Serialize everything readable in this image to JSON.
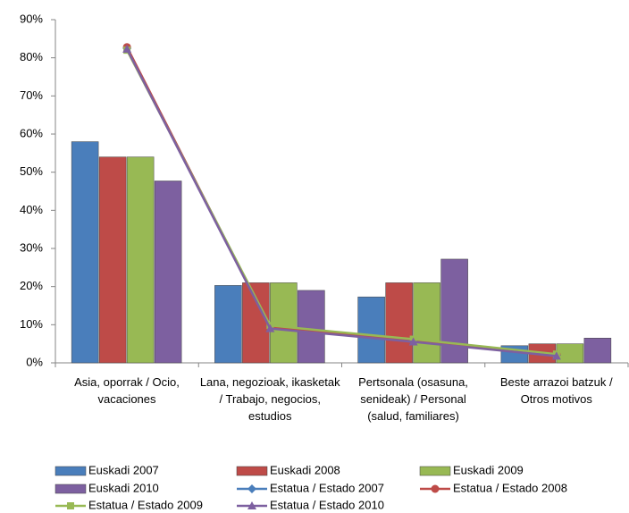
{
  "chart_data": {
    "type": "bar_line",
    "categories": [
      "Asia, oporrak / Ocio, vacaciones",
      "Lana, negozioak, ikasketak / Trabajo, negocios, estudios",
      "Pertsonala (osasuna, senideak) / Personal (salud, familiares)",
      "Beste arrazoi batzuk / Otros motivos"
    ],
    "series": [
      {
        "name": "Euskadi 2007",
        "type": "bar",
        "color": "#4a7ebb",
        "values": [
          58,
          20.3,
          17.3,
          4.5
        ]
      },
      {
        "name": "Euskadi 2008",
        "type": "bar",
        "color": "#be4b48",
        "values": [
          54,
          21,
          21,
          5
        ]
      },
      {
        "name": "Euskadi 2009",
        "type": "bar",
        "color": "#98b954",
        "values": [
          54,
          21,
          21,
          5
        ]
      },
      {
        "name": "Euskadi 2010",
        "type": "bar",
        "color": "#7d60a0",
        "values": [
          47.7,
          19,
          27.2,
          6.5
        ]
      },
      {
        "name": "Estatua / Estado 2007",
        "type": "line",
        "marker": "diamond",
        "color": "#4a7ebb",
        "values": [
          82.5,
          9.5,
          6,
          2
        ]
      },
      {
        "name": "Estatua / Estado 2008",
        "type": "line",
        "marker": "circle",
        "color": "#be4b48",
        "values": [
          82.8,
          9.3,
          5.8,
          2.2
        ]
      },
      {
        "name": "Estatua / Estado 2009",
        "type": "line",
        "marker": "square",
        "color": "#98b954",
        "values": [
          82,
          9.8,
          6.2,
          2.3
        ]
      },
      {
        "name": "Estatua / Estado 2010",
        "type": "line",
        "marker": "triangle",
        "color": "#7d60a0",
        "values": [
          82.3,
          9,
          5.5,
          1.8
        ]
      }
    ],
    "ylim": [
      0,
      90
    ],
    "yticks": [
      {
        "value": 0,
        "label": "0%"
      },
      {
        "value": 10,
        "label": "10%"
      },
      {
        "value": 20,
        "label": "20%"
      },
      {
        "value": 30,
        "label": "30%"
      },
      {
        "value": 40,
        "label": "40%"
      },
      {
        "value": 50,
        "label": "50%"
      },
      {
        "value": 60,
        "label": "60%"
      },
      {
        "value": 70,
        "label": "70%"
      },
      {
        "value": 80,
        "label": "80%"
      },
      {
        "value": 90,
        "label": "90%"
      }
    ],
    "grid": false,
    "legend": "bottom"
  }
}
